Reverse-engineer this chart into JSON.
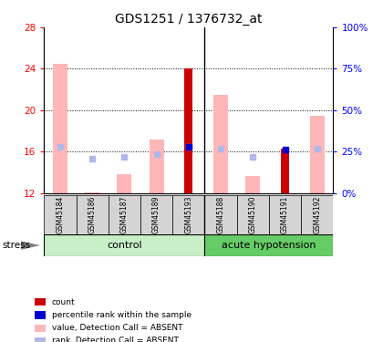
{
  "title": "GDS1251 / 1376732_at",
  "samples": [
    "GSM45184",
    "GSM45186",
    "GSM45187",
    "GSM45189",
    "GSM45193",
    "GSM45188",
    "GSM45190",
    "GSM45191",
    "GSM45192"
  ],
  "value_absent": [
    24.5,
    12.1,
    13.8,
    17.2,
    null,
    21.5,
    13.7,
    null,
    19.5
  ],
  "rank_absent_left": [
    16.5,
    15.3,
    15.5,
    15.8,
    16.5,
    16.3,
    15.5,
    null,
    16.3
  ],
  "count_value": [
    null,
    null,
    null,
    null,
    24.0,
    null,
    null,
    16.3,
    null
  ],
  "rank_count_left": [
    null,
    null,
    null,
    null,
    16.5,
    null,
    null,
    16.2,
    null
  ],
  "ylim_left": [
    12,
    28
  ],
  "ylim_right": [
    0,
    100
  ],
  "yticks_left": [
    12,
    16,
    20,
    24,
    28
  ],
  "yticks_right": [
    0,
    25,
    50,
    75,
    100
  ],
  "ytick_labels_right": [
    "0%",
    "25%",
    "50%",
    "75%",
    "100%"
  ],
  "color_count": "#cc0000",
  "color_rank_count": "#0000cc",
  "color_value_absent": "#ffb6b6",
  "color_rank_absent": "#b0b8e8",
  "control_group_color": "#c8f0c8",
  "acute_group_color": "#66cc66",
  "group_label_control": "control",
  "group_label_acute": "acute hypotension",
  "stress_label": "stress",
  "legend_items": [
    {
      "color": "#cc0000",
      "label": "count"
    },
    {
      "color": "#0000cc",
      "label": "percentile rank within the sample"
    },
    {
      "color": "#ffb6b6",
      "label": "value, Detection Call = ABSENT"
    },
    {
      "color": "#b0b8e8",
      "label": "rank, Detection Call = ABSENT"
    }
  ],
  "n_control": 5,
  "n_acute": 4
}
